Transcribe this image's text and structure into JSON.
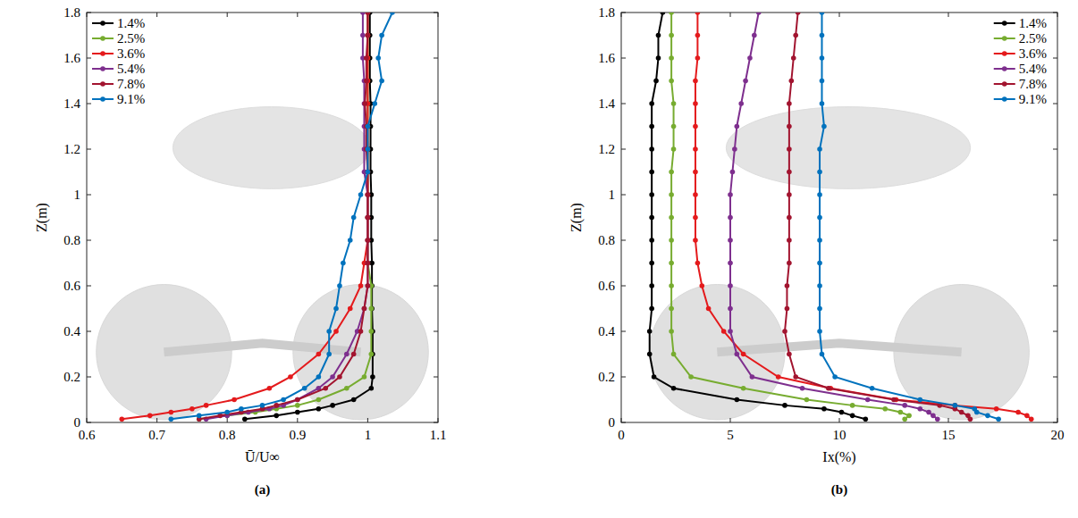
{
  "chart_data": [
    {
      "type": "line",
      "panel": "(a)",
      "x_label": "Ū/U∞",
      "y_label": "Z(m)",
      "xlim": [
        0.6,
        1.1
      ],
      "xticks": [
        0.6,
        0.7,
        0.8,
        0.9,
        1,
        1.1
      ],
      "ylim": [
        0,
        1.8
      ],
      "yticks": [
        0,
        0.2,
        0.4,
        0.6,
        0.8,
        1,
        1.2,
        1.4,
        1.6,
        1.8
      ],
      "grid": false,
      "legend": "top-left",
      "marker": "circle",
      "series": [
        {
          "name": "1.4%",
          "color": "#000000",
          "x": [
            0.825,
            0.87,
            0.9,
            0.93,
            0.95,
            0.98,
            1.005,
            1.007,
            1.007,
            1.007,
            1.006,
            1.006,
            1.006,
            1.005,
            1.005,
            1.005,
            1.004,
            1.004,
            1.004,
            1.004,
            1.003,
            1.003,
            1.003,
            1.003
          ],
          "values": [
            0.015,
            0.03,
            0.045,
            0.06,
            0.075,
            0.1,
            0.15,
            0.2,
            0.3,
            0.4,
            0.5,
            0.6,
            0.7,
            0.8,
            0.9,
            1.0,
            1.1,
            1.2,
            1.3,
            1.4,
            1.5,
            1.6,
            1.7,
            1.8
          ]
        },
        {
          "name": "2.5%",
          "color": "#77ac30",
          "x": [
            0.76,
            0.8,
            0.84,
            0.87,
            0.9,
            0.93,
            0.97,
            0.995,
            1.005,
            1.005,
            1.005,
            1.005,
            1.0,
            1.0,
            1.0,
            1.0,
            1.0,
            1.0,
            1.0,
            1.0,
            1.0,
            1.0,
            1.0,
            1.0
          ],
          "values": [
            0.015,
            0.03,
            0.045,
            0.06,
            0.075,
            0.1,
            0.15,
            0.2,
            0.3,
            0.4,
            0.5,
            0.6,
            0.7,
            0.8,
            0.9,
            1.0,
            1.1,
            1.2,
            1.3,
            1.4,
            1.5,
            1.6,
            1.7,
            1.8
          ]
        },
        {
          "name": "3.6%",
          "color": "#e41a1c",
          "x": [
            0.65,
            0.69,
            0.72,
            0.75,
            0.77,
            0.81,
            0.86,
            0.89,
            0.93,
            0.955,
            0.975,
            0.99,
            0.995,
            1.0,
            1.0,
            1.0,
            1.0,
            1.0,
            1.0,
            1.0,
            1.0,
            1.0,
            1.0,
            1.0
          ],
          "values": [
            0.015,
            0.03,
            0.045,
            0.06,
            0.075,
            0.1,
            0.15,
            0.2,
            0.3,
            0.4,
            0.5,
            0.6,
            0.7,
            0.8,
            0.9,
            1.0,
            1.1,
            1.2,
            1.3,
            1.4,
            1.5,
            1.6,
            1.7,
            1.8
          ]
        },
        {
          "name": "5.4%",
          "color": "#7e2f8e",
          "x": [
            0.77,
            0.8,
            0.83,
            0.86,
            0.88,
            0.9,
            0.93,
            0.95,
            0.97,
            0.985,
            0.995,
            1.0,
            1.0,
            1.0,
            1.0,
            1.0,
            0.995,
            0.995,
            0.995,
            0.995,
            0.995,
            0.993,
            0.993,
            0.993
          ],
          "values": [
            0.015,
            0.03,
            0.045,
            0.06,
            0.075,
            0.1,
            0.15,
            0.2,
            0.3,
            0.4,
            0.5,
            0.6,
            0.7,
            0.8,
            0.9,
            1.0,
            1.1,
            1.2,
            1.3,
            1.4,
            1.5,
            1.6,
            1.7,
            1.8
          ]
        },
        {
          "name": "7.8%",
          "color": "#a2142f",
          "x": [
            0.76,
            0.79,
            0.82,
            0.85,
            0.87,
            0.9,
            0.94,
            0.96,
            0.98,
            0.99,
            0.995,
            1.0,
            1.0,
            1.0,
            1.0,
            1.0,
            1.0,
            0.998,
            0.998,
            0.996,
            0.998,
            0.998,
            1.0,
            1.0
          ],
          "values": [
            0.015,
            0.03,
            0.045,
            0.06,
            0.075,
            0.1,
            0.15,
            0.2,
            0.3,
            0.4,
            0.5,
            0.6,
            0.7,
            0.8,
            0.9,
            1.0,
            1.1,
            1.2,
            1.3,
            1.4,
            1.5,
            1.6,
            1.7,
            1.8
          ]
        },
        {
          "name": "9.1%",
          "color": "#0072bd",
          "x": [
            0.72,
            0.76,
            0.8,
            0.82,
            0.85,
            0.88,
            0.91,
            0.93,
            0.945,
            0.945,
            0.955,
            0.96,
            0.965,
            0.975,
            0.98,
            0.99,
            1.0,
            1.0,
            1.0,
            1.01,
            1.02,
            1.015,
            1.02,
            1.035
          ],
          "values": [
            0.015,
            0.03,
            0.045,
            0.06,
            0.075,
            0.1,
            0.15,
            0.2,
            0.3,
            0.4,
            0.5,
            0.6,
            0.7,
            0.8,
            0.9,
            1.0,
            1.1,
            1.2,
            1.3,
            1.4,
            1.5,
            1.6,
            1.7,
            1.8
          ]
        }
      ]
    },
    {
      "type": "line",
      "panel": "(b)",
      "x_label": "Ix(%)",
      "y_label": "Z(m)",
      "xlim": [
        0,
        20
      ],
      "xticks": [
        0,
        5,
        10,
        15,
        20
      ],
      "ylim": [
        0,
        1.8
      ],
      "yticks": [
        0,
        0.2,
        0.4,
        0.6,
        0.8,
        1,
        1.2,
        1.4,
        1.6,
        1.8
      ],
      "grid": false,
      "legend": "top-right",
      "marker": "circle",
      "series": [
        {
          "name": "1.4%",
          "color": "#000000",
          "x": [
            11.2,
            10.6,
            10.1,
            9.3,
            7.5,
            5.3,
            2.4,
            1.5,
            1.3,
            1.3,
            1.4,
            1.4,
            1.4,
            1.4,
            1.4,
            1.4,
            1.4,
            1.4,
            1.4,
            1.4,
            1.6,
            1.7,
            1.7,
            1.9
          ],
          "values": [
            0.015,
            0.03,
            0.045,
            0.06,
            0.075,
            0.1,
            0.15,
            0.2,
            0.3,
            0.4,
            0.5,
            0.6,
            0.7,
            0.8,
            0.9,
            1.0,
            1.1,
            1.2,
            1.3,
            1.4,
            1.5,
            1.6,
            1.7,
            1.8
          ]
        },
        {
          "name": "2.5%",
          "color": "#77ac30",
          "x": [
            13.0,
            13.2,
            12.8,
            12.1,
            10.6,
            8.5,
            5.6,
            3.2,
            2.4,
            2.3,
            2.3,
            2.3,
            2.3,
            2.3,
            2.3,
            2.3,
            2.3,
            2.4,
            2.4,
            2.4,
            2.3,
            2.3,
            2.3,
            2.3
          ],
          "values": [
            0.015,
            0.03,
            0.045,
            0.06,
            0.075,
            0.1,
            0.15,
            0.2,
            0.3,
            0.4,
            0.5,
            0.6,
            0.7,
            0.8,
            0.9,
            1.0,
            1.1,
            1.2,
            1.3,
            1.4,
            1.5,
            1.6,
            1.7,
            1.8
          ]
        },
        {
          "name": "3.6%",
          "color": "#e41a1c",
          "x": [
            18.8,
            18.6,
            18.2,
            17.2,
            15.3,
            12.6,
            9.6,
            7.2,
            5.6,
            4.7,
            4.0,
            3.7,
            3.5,
            3.4,
            3.4,
            3.4,
            3.4,
            3.4,
            3.4,
            3.4,
            3.4,
            3.5,
            3.5,
            3.5
          ],
          "values": [
            0.015,
            0.03,
            0.045,
            0.06,
            0.075,
            0.1,
            0.15,
            0.2,
            0.3,
            0.4,
            0.5,
            0.6,
            0.7,
            0.8,
            0.9,
            1.0,
            1.1,
            1.2,
            1.3,
            1.4,
            1.5,
            1.6,
            1.7,
            1.8
          ]
        },
        {
          "name": "5.4%",
          "color": "#7e2f8e",
          "x": [
            14.5,
            14.3,
            14.1,
            13.7,
            13.0,
            11.3,
            8.3,
            6.0,
            5.3,
            5.0,
            5.0,
            5.0,
            5.0,
            5.0,
            5.0,
            5.0,
            5.1,
            5.2,
            5.3,
            5.5,
            5.7,
            5.9,
            6.1,
            6.3
          ],
          "values": [
            0.015,
            0.03,
            0.045,
            0.06,
            0.075,
            0.1,
            0.15,
            0.2,
            0.3,
            0.4,
            0.5,
            0.6,
            0.7,
            0.8,
            0.9,
            1.0,
            1.1,
            1.2,
            1.3,
            1.4,
            1.5,
            1.6,
            1.7,
            1.8
          ]
        },
        {
          "name": "7.8%",
          "color": "#a2142f",
          "x": [
            16.0,
            15.9,
            15.6,
            15.3,
            14.6,
            12.5,
            9.5,
            8.0,
            7.7,
            7.5,
            7.6,
            7.6,
            7.7,
            7.7,
            7.7,
            7.7,
            7.7,
            7.7,
            7.7,
            7.7,
            7.8,
            7.9,
            8.0,
            8.1
          ],
          "values": [
            0.015,
            0.03,
            0.045,
            0.06,
            0.075,
            0.1,
            0.15,
            0.2,
            0.3,
            0.4,
            0.5,
            0.6,
            0.7,
            0.8,
            0.9,
            1.0,
            1.1,
            1.2,
            1.3,
            1.4,
            1.5,
            1.6,
            1.7,
            1.8
          ]
        },
        {
          "name": "9.1%",
          "color": "#0072bd",
          "x": [
            17.3,
            16.8,
            16.3,
            16.2,
            15.3,
            13.7,
            11.5,
            9.8,
            9.2,
            9.1,
            9.1,
            9.1,
            9.1,
            9.1,
            9.1,
            9.1,
            9.1,
            9.1,
            9.3,
            9.2,
            9.2,
            9.2,
            9.2,
            9.2
          ],
          "values": [
            0.015,
            0.03,
            0.045,
            0.06,
            0.075,
            0.1,
            0.15,
            0.2,
            0.3,
            0.4,
            0.5,
            0.6,
            0.7,
            0.8,
            0.9,
            1.0,
            1.1,
            1.2,
            1.3,
            1.4,
            1.5,
            1.6,
            1.7,
            1.8
          ]
        }
      ]
    }
  ]
}
